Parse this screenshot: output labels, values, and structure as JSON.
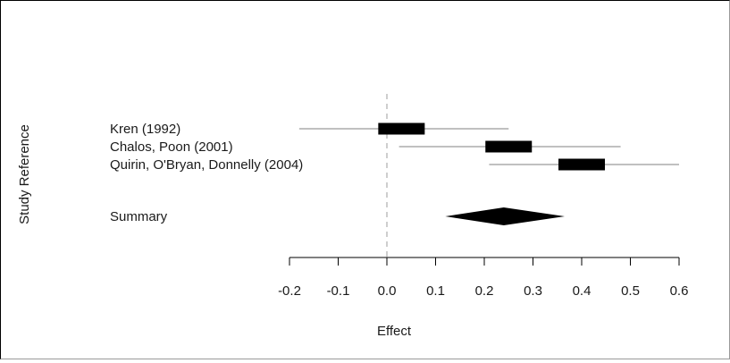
{
  "chart_data": {
    "type": "forest",
    "xlabel": "Effect",
    "ylabel": "Study Reference",
    "xlim": [
      -0.2,
      0.6
    ],
    "x_ticks": [
      -0.2,
      -0.1,
      0.0,
      0.1,
      0.2,
      0.3,
      0.4,
      0.5,
      0.6
    ],
    "x_tick_labels": [
      "-0.2",
      "-0.1",
      "0.0",
      "0.1",
      "0.2",
      "0.3",
      "0.4",
      "0.5",
      "0.6"
    ],
    "reference_line": 0,
    "studies": [
      {
        "label": "Kren (1992)",
        "estimate": 0.03,
        "ci": [
          -0.18,
          0.25
        ]
      },
      {
        "label": "Chalos, Poon (2001)",
        "estimate": 0.25,
        "ci": [
          0.025,
          0.48
        ]
      },
      {
        "label": "Quirin, O'Bryan, Donnelly (2004)",
        "estimate": 0.4,
        "ci": [
          0.21,
          0.6
        ]
      }
    ],
    "summary": {
      "label": "Summary",
      "estimate": 0.24,
      "ci": [
        0.12,
        0.365
      ]
    },
    "grid": false,
    "colors": {
      "ci_line": "#c0c0c0",
      "box": "#000000",
      "summary": "#000000",
      "reference": "#bdbdbd"
    }
  }
}
